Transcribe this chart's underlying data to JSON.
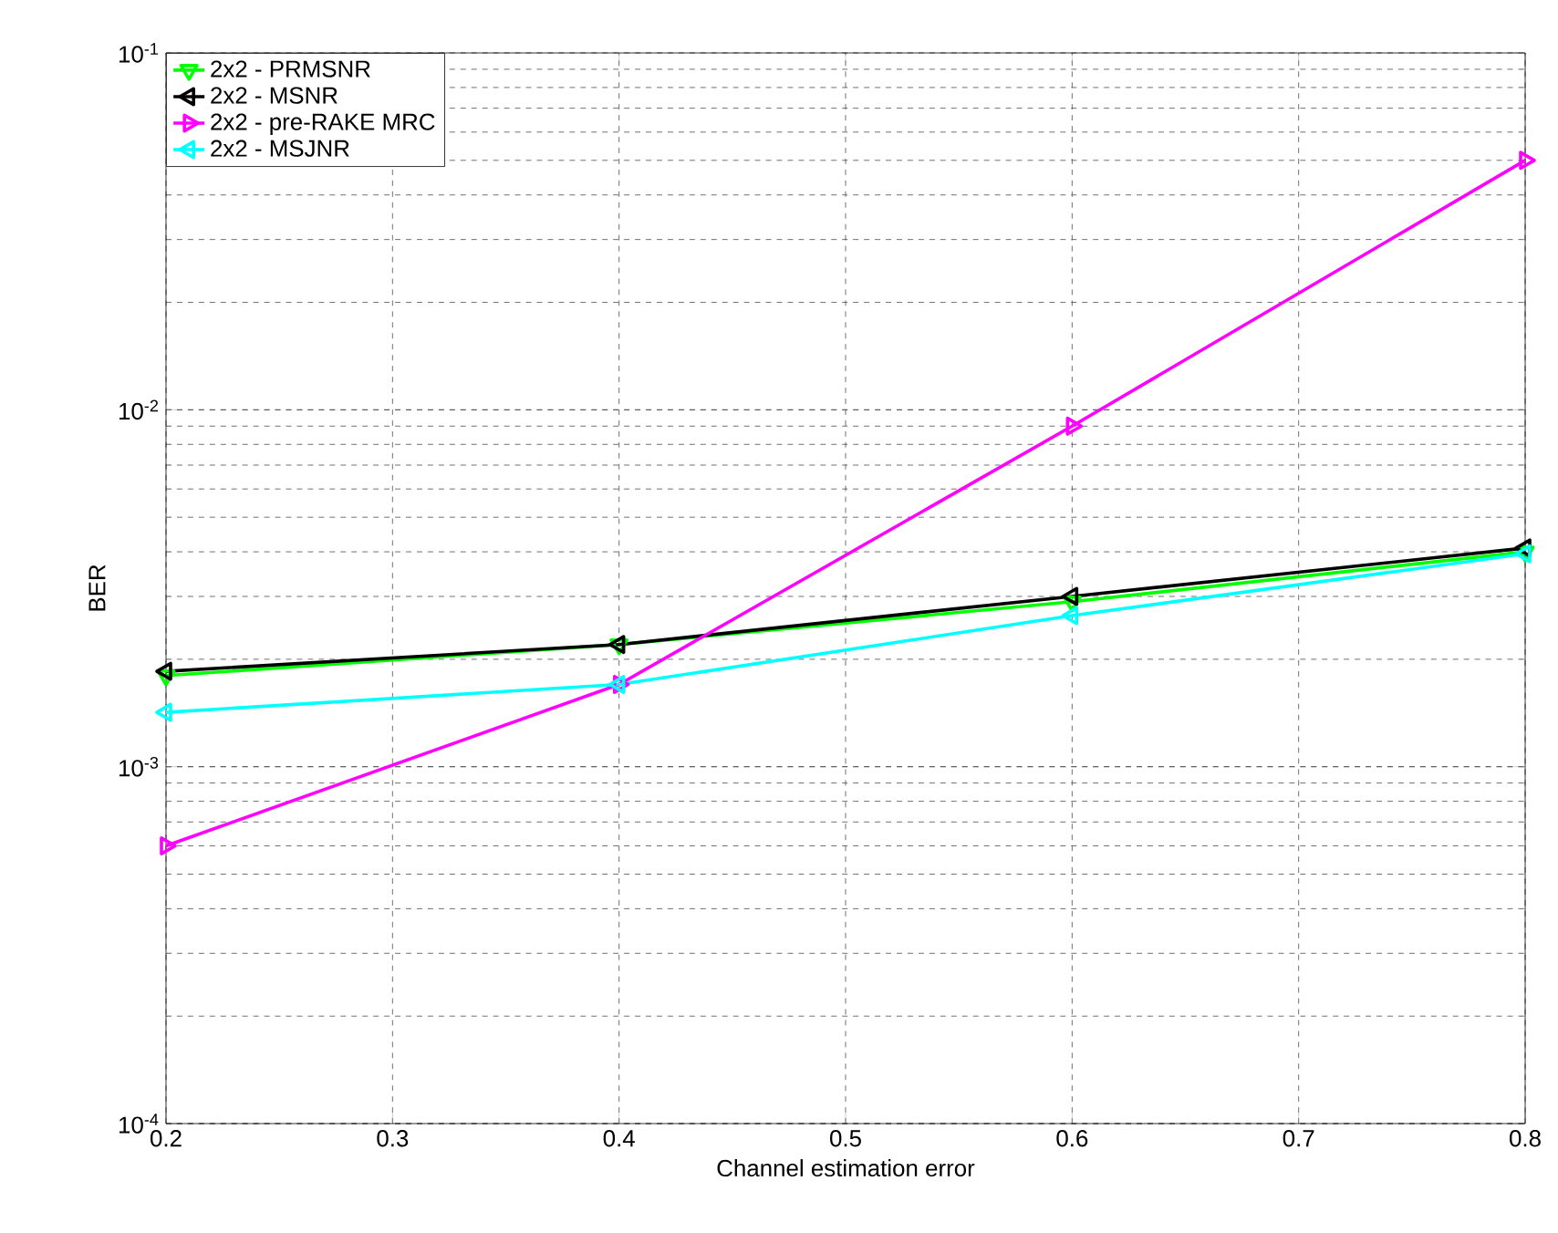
{
  "chart_data": {
    "type": "line",
    "xlabel": "Channel estimation error",
    "ylabel": "BER",
    "log": "y",
    "grid": true,
    "legend": "top left",
    "line_style": "solid",
    "x": [
      0.2,
      0.4,
      0.6,
      0.8
    ],
    "xlim": [
      0.2,
      0.8
    ],
    "xticks": [
      0.2,
      0.3,
      0.4,
      0.5,
      0.6,
      0.7,
      0.8
    ],
    "ylim": [
      0.0001,
      0.1
    ],
    "yticks": [
      {
        "value": 0.0001,
        "label": "10$^{-4}$"
      },
      {
        "value": 0.001,
        "label": "10$^{-3}$"
      },
      {
        "value": 0.01,
        "label": "10$^{-2}$"
      },
      {
        "value": 0.1,
        "label": "10$^{-1}$"
      }
    ],
    "series": [
      {
        "name": "2x2 - PRMSNR",
        "color": "#00ff00",
        "marker": "triangle-down",
        "values": [
          0.0018,
          0.0022,
          0.0029,
          0.004
        ]
      },
      {
        "name": "2x2 - MSNR",
        "color": "#000000",
        "marker": "triangle-left",
        "values": [
          0.00185,
          0.0022,
          0.003,
          0.0041
        ]
      },
      {
        "name": "2x2 - pre-RAKE MRC",
        "color": "#ff00ff",
        "marker": "triangle-right",
        "values": [
          0.0006,
          0.0017,
          0.009,
          0.05
        ]
      },
      {
        "name": "2x2 - MSJNR",
        "color": "#00ffff",
        "marker": "triangle-left",
        "values": [
          0.00142,
          0.0017,
          0.00265,
          0.00395
        ]
      }
    ]
  }
}
